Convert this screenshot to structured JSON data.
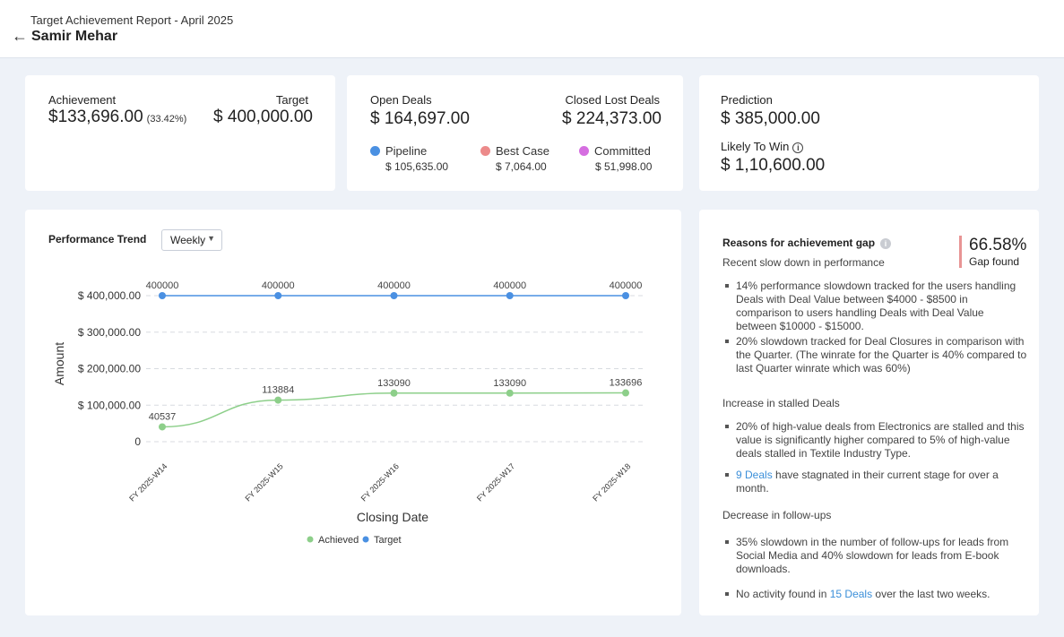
{
  "header": {
    "subtitle": "Target Achievement Report - April 2025",
    "name": "Samir Mehar",
    "back_icon": "←"
  },
  "achievement": {
    "label": "Achievement",
    "value": "$133,696.00",
    "percent": "(33.42%)",
    "target_label": "Target",
    "target_value": "$ 400,000.00"
  },
  "deals": {
    "open_label": "Open Deals",
    "open_value": "$ 164,697.00",
    "lost_label": "Closed Lost Deals",
    "lost_value": "$ 224,373.00",
    "pipeline_label": "Pipeline",
    "pipeline_value": "$ 105,635.00",
    "pipeline_color": "#4a90e2",
    "best_label": "Best Case",
    "best_value": "$ 7,064.00",
    "best_color": "#ec8a8a",
    "committed_label": "Committed",
    "committed_value": "$ 51,998.00",
    "committed_color": "#d56ee0"
  },
  "prediction": {
    "label": "Prediction",
    "value": "$ 385,000.00",
    "likely_label": "Likely To Win",
    "likely_value": "$ 1,10,600.00"
  },
  "trend": {
    "title": "Performance Trend",
    "period": "Weekly",
    "caret": "▼"
  },
  "chart_data": {
    "type": "line",
    "x": [
      "FY 2025-W14",
      "FY 2025-W15",
      "FY 2025-W16",
      "FY 2025-W17",
      "FY 2025-W18"
    ],
    "series": [
      {
        "name": "Achieved",
        "values": [
          40537,
          113884,
          133090,
          133090,
          133696
        ],
        "color": "#8dcf8a"
      },
      {
        "name": "Target",
        "values": [
          400000,
          400000,
          400000,
          400000,
          400000
        ],
        "color": "#4a90e2"
      }
    ],
    "yticks": [
      "$ 400,000.00",
      "$ 300,000.00",
      "$ 200,000.00",
      "$ 100,000.00",
      "0"
    ],
    "ytick_values": [
      400000,
      300000,
      200000,
      100000,
      0
    ],
    "xlabel": "Closing Date",
    "ylabel": "Amount",
    "ylim": [
      0,
      400000
    ],
    "grid": true,
    "legend": "bottom"
  },
  "reasons": {
    "title": "Reasons for achievement gap",
    "gap_percent": "66.58%",
    "gap_label": "Gap found",
    "sections": [
      {
        "heading": "Recent slow down in performance",
        "bullets": [
          {
            "text": "14% performance slowdown tracked for the users handling Deals with Deal Value between $4000 - $8500 in comparison to users handling Deals with Deal Value between $10000 - $15000."
          },
          {
            "text": "20% slowdown tracked for Deal Closures in comparison with the Quarter. (The winrate for the Quarter is 40% compared to last Quarter winrate which was 60%)"
          }
        ]
      },
      {
        "heading": "Increase in stalled Deals",
        "bullets": [
          {
            "text": "20% of high-value deals from Electronics are stalled and this value is significantly higher compared to 5% of high-value deals stalled in Textile Industry Type."
          },
          {
            "link": "9 Deals",
            "text": " have stagnated in their current stage for over a month."
          }
        ]
      },
      {
        "heading": "Decrease in follow-ups",
        "bullets": [
          {
            "text": "35% slowdown in the number of follow-ups for leads from Social Media and 40% slowdown for leads from E-book downloads."
          },
          {
            "pre": "No activity found in ",
            "link": "15 Deals",
            "text": " over the last two weeks."
          }
        ]
      }
    ]
  }
}
